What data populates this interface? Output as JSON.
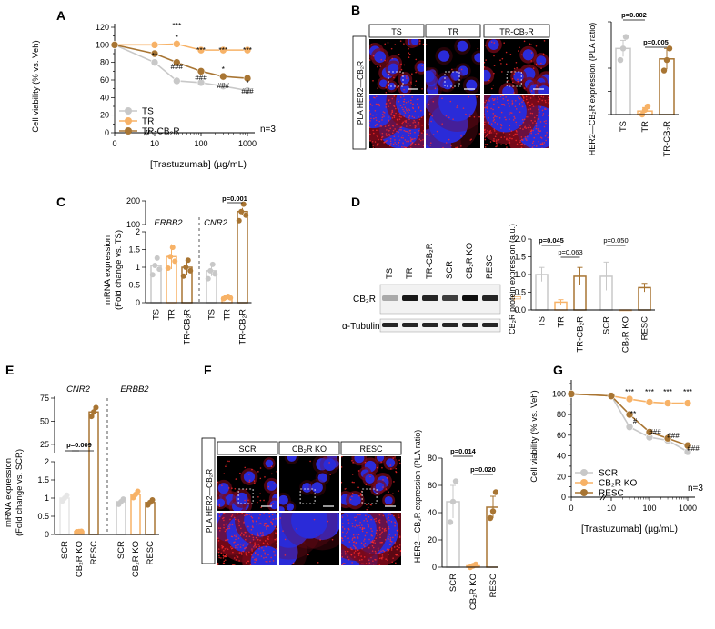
{
  "panels": {
    "A": "A",
    "B": "B",
    "C": "C",
    "D": "D",
    "E": "E",
    "F": "F",
    "G": "G"
  },
  "chart_data": [
    {
      "id": "A",
      "type": "line",
      "ylabel": "Cell viability (% vs. Veh)",
      "xlabel": "[Trastuzumab] (µg/mL)",
      "xscale": "log",
      "xticks": [
        "0",
        "10",
        "100",
        "1000"
      ],
      "ylim": [
        0,
        120
      ],
      "yticks": [
        0,
        10,
        20,
        30,
        40,
        50,
        60,
        70,
        80,
        90,
        100,
        110,
        120
      ],
      "x": [
        0,
        10,
        30,
        100,
        300,
        1000
      ],
      "series": [
        {
          "name": "TS",
          "color": "#c8c8c8",
          "values": [
            100,
            80,
            59,
            57,
            53,
            48
          ]
        },
        {
          "name": "TR",
          "color": "#f7b267",
          "values": [
            100,
            100,
            101,
            94,
            94,
            94
          ]
        },
        {
          "name": "TR-CB₂R",
          "color": "#a87533",
          "values": [
            100,
            90,
            80,
            70,
            64,
            62
          ]
        }
      ],
      "star_labels": [
        "**",
        "***",
        "***",
        "***",
        "***"
      ],
      "hash_labels": [
        "###",
        "###",
        "###",
        "###"
      ],
      "n_label": "n=3"
    },
    {
      "id": "B",
      "type": "bar",
      "ylabel": "HER2—CB₂R expression (PLA ratio)",
      "categories": [
        "TS",
        "TR",
        "TR-CB₂R"
      ],
      "values": [
        57,
        3,
        48
      ],
      "errors": [
        7,
        3,
        9
      ],
      "colors": [
        "#c8c8c8",
        "#f7b267",
        "#a87533"
      ],
      "points": [
        [
          47,
          57,
          67
        ],
        [
          0,
          4,
          7
        ],
        [
          38,
          47,
          57
        ]
      ],
      "ylim": [
        0,
        80
      ],
      "pvalues": [
        "p=0.002",
        "p=0.005"
      ],
      "image_labels": [
        "TS",
        "TR",
        "TR-CB₂R"
      ],
      "row_label": "PLA HER2—CB₂R"
    },
    {
      "id": "C",
      "type": "bar",
      "ylabel": "mRNA expression",
      "ylabel2": "(Fold change vs. TS)",
      "groups": [
        "ERBB2",
        "CNR2"
      ],
      "categories": [
        "TS",
        "TR",
        "TR-CB₂R",
        "TS",
        "TR",
        "TR-CB₂R"
      ],
      "values": [
        1.05,
        1.3,
        1.0,
        0.9,
        0.15,
        155
      ],
      "errors": [
        0.25,
        0.35,
        0.22,
        0.15,
        0.08,
        15
      ],
      "colors": [
        "#c8c8c8",
        "#f7b267",
        "#a87533",
        "#c8c8c8",
        "#f7b267",
        "#a87533"
      ],
      "yticks": [
        "0",
        "0.5",
        "1",
        "1.5",
        "2",
        "100",
        "200"
      ],
      "pvalue": "p=0.001"
    },
    {
      "id": "D",
      "type": "bar",
      "ylabel": "CB₂R protein expression (a.u.)",
      "categories": [
        "TS",
        "TR",
        "TR-CB₂R",
        "SCR",
        "CB₂R KO",
        "RESC"
      ],
      "values": [
        1.0,
        0.22,
        0.95,
        0.95,
        0.0,
        0.63
      ],
      "errors": [
        0.2,
        0.07,
        0.25,
        0.4,
        0.0,
        0.12
      ],
      "colors": [
        "#c8c8c8",
        "#f7b267",
        "#a87533",
        "#c8c8c8",
        "#f7b267",
        "#a87533"
      ],
      "ylim": [
        0,
        2.0
      ],
      "yticks": [
        "0.0",
        "0.5",
        "1.0",
        "1.5",
        "2.0"
      ],
      "pvalues": [
        "p=0.045",
        "p=0.063",
        "p=0.050"
      ],
      "blot_lanes": [
        "TS",
        "TR",
        "TR-CB₂R",
        "SCR",
        "CB₂R KO",
        "RESC"
      ],
      "blot_rows": [
        "CB₂R",
        "α-Tubulin"
      ]
    },
    {
      "id": "E",
      "type": "bar",
      "ylabel": "mRNA expression",
      "ylabel2": "(Fold change vs. SCR)",
      "groups": [
        "CNR2",
        "ERBB2"
      ],
      "categories": [
        "SCR",
        "CB₂R KO",
        "RESC",
        "SCR",
        "CB₂R KO",
        "RESC"
      ],
      "values": [
        1.0,
        0.08,
        60,
        0.9,
        1.1,
        0.88
      ],
      "errors": [
        0.05,
        0.05,
        6,
        0.08,
        0.12,
        0.07
      ],
      "colors": [
        "#e6e6e6",
        "#f7b267",
        "#a87533",
        "#c8c8c8",
        "#f7b267",
        "#a87533"
      ],
      "yticks": [
        "0",
        "0.5",
        "1",
        "1.5",
        "2",
        "25",
        "50",
        "75"
      ],
      "pvalue": "p=0.009"
    },
    {
      "id": "F",
      "type": "bar",
      "ylabel": "HER2—CB₂R expression (PLA ratio)",
      "categories": [
        "SCR",
        "CB₂R KO",
        "RESC"
      ],
      "values": [
        48,
        1,
        44
      ],
      "errors": [
        12,
        1,
        8
      ],
      "colors": [
        "#c8c8c8",
        "#f7b267",
        "#a87533"
      ],
      "points": [
        [
          33,
          48,
          63
        ],
        [
          0,
          1,
          2
        ],
        [
          36,
          41,
          55
        ]
      ],
      "ylim": [
        0,
        80
      ],
      "yticks": [
        "0",
        "20",
        "40",
        "60",
        "80"
      ],
      "pvalues": [
        "p=0.014",
        "p=0.020"
      ],
      "image_labels": [
        "SCR",
        "CB₂R KO",
        "RESC"
      ],
      "row_label": "PLA HER2—CB₂R"
    },
    {
      "id": "G",
      "type": "line",
      "ylabel": "Cell viability (% vs. Veh)",
      "xlabel": "[Trastuzumab] (µg/mL)",
      "xscale": "log",
      "xticks": [
        "0",
        "10",
        "100",
        "1000"
      ],
      "ylim": [
        0,
        110
      ],
      "yticks": [
        0,
        10,
        20,
        30,
        40,
        50,
        60,
        70,
        80,
        90,
        100,
        110
      ],
      "x": [
        0,
        10,
        30,
        100,
        300,
        1000
      ],
      "series": [
        {
          "name": "SCR",
          "color": "#c8c8c8",
          "values": [
            100,
            98,
            68,
            58,
            55,
            44
          ]
        },
        {
          "name": "CB₂R KO",
          "color": "#f7b267",
          "values": [
            100,
            98,
            95,
            92,
            91,
            91
          ]
        },
        {
          "name": "RESC",
          "color": "#a87533",
          "values": [
            100,
            98,
            80,
            63,
            57,
            50
          ]
        }
      ],
      "star_labels": [
        "***",
        "***",
        "***",
        "***",
        "**"
      ],
      "hash_labels": [
        "#",
        "###",
        "###",
        "###"
      ],
      "n_label": "n=3"
    }
  ]
}
